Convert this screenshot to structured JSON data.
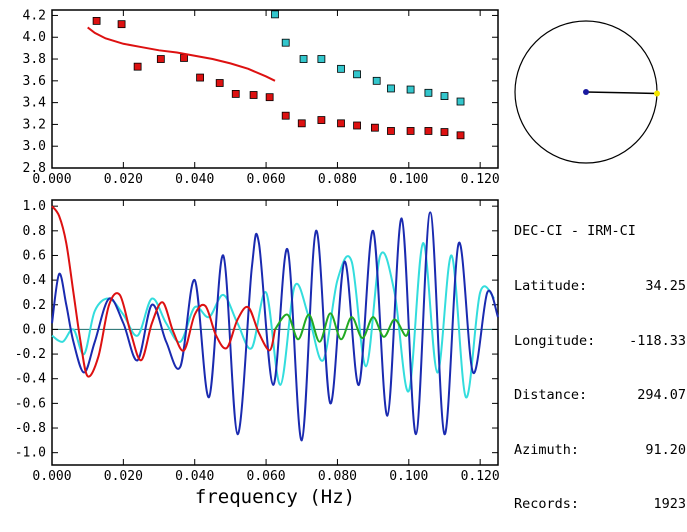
{
  "info_panel": {
    "header": "DEC-CI - IRM-CI",
    "rows": [
      {
        "key": "Latitude:",
        "value": "34.25"
      },
      {
        "key": "Longitude:",
        "value": "-118.33"
      },
      {
        "key": "Distance:",
        "value": "294.07"
      },
      {
        "key": "Azimuth:",
        "value": "91.20"
      },
      {
        "key": "Records:",
        "value": "1923"
      }
    ]
  },
  "azimuth_compass": {
    "azimuth_deg": 91.2,
    "colors": {
      "center": "#1a1aa0",
      "end": "#f5e600",
      "line": "#000000"
    }
  },
  "chart_data": [
    {
      "type": "scatter",
      "xlim": [
        0.0,
        0.125
      ],
      "ylim": [
        2.8,
        4.25
      ],
      "xticks": [
        "0.000",
        "0.020",
        "0.040",
        "0.060",
        "0.080",
        "0.100",
        "0.120"
      ],
      "yticks": [
        "2.8",
        "3.0",
        "3.2",
        "3.4",
        "3.6",
        "3.8",
        "4.0",
        "4.2"
      ],
      "series": [
        {
          "color": "#dd1111",
          "marker": "square",
          "x": [
            0.0125,
            0.0195,
            0.024,
            0.0305,
            0.037,
            0.0415,
            0.047,
            0.0515,
            0.0565,
            0.061,
            0.0655,
            0.07,
            0.0755,
            0.081,
            0.0855,
            0.0905,
            0.095,
            0.1005,
            0.1055,
            0.11,
            0.1145
          ],
          "y": [
            4.15,
            4.12,
            3.73,
            3.8,
            3.81,
            3.63,
            3.58,
            3.48,
            3.47,
            3.45,
            3.28,
            3.21,
            3.24,
            3.21,
            3.19,
            3.17,
            3.14,
            3.14,
            3.14,
            3.13,
            3.1
          ]
        },
        {
          "color": "#33c6cc",
          "marker": "square",
          "x": [
            0.0625,
            0.0655,
            0.0705,
            0.0755,
            0.081,
            0.0855,
            0.091,
            0.095,
            0.1005,
            0.1055,
            0.11,
            0.1145
          ],
          "y": [
            4.21,
            3.95,
            3.8,
            3.8,
            3.71,
            3.66,
            3.6,
            3.53,
            3.52,
            3.49,
            3.46,
            3.41
          ]
        },
        {
          "color": "#dd1111",
          "marker": "line",
          "x": [
            0.01,
            0.012,
            0.015,
            0.02,
            0.025,
            0.03,
            0.035,
            0.04,
            0.045,
            0.05,
            0.055,
            0.06,
            0.0625
          ],
          "y": [
            4.09,
            4.04,
            3.99,
            3.94,
            3.91,
            3.88,
            3.86,
            3.83,
            3.8,
            3.76,
            3.71,
            3.64,
            3.6
          ]
        }
      ]
    },
    {
      "type": "line",
      "xlabel": "frequency (Hz)",
      "xlim": [
        0.0,
        0.125
      ],
      "ylim": [
        -1.1,
        1.05
      ],
      "xticks": [
        "0.000",
        "0.020",
        "0.040",
        "0.060",
        "0.080",
        "0.100",
        "0.120"
      ],
      "yticks": [
        "1.0",
        "0.8",
        "0.6",
        "0.4",
        "0.2",
        "0.0",
        "-0.2",
        "-0.4",
        "-0.6",
        "-0.8",
        "-1.0"
      ],
      "series": [
        {
          "color": "#dd1111",
          "x": [
            0.0,
            0.002,
            0.004,
            0.006,
            0.008,
            0.01,
            0.013,
            0.016,
            0.019,
            0.022,
            0.025,
            0.028,
            0.031,
            0.034,
            0.037,
            0.04,
            0.043,
            0.046,
            0.049,
            0.052,
            0.055,
            0.058,
            0.061,
            0.0625
          ],
          "y": [
            1.0,
            0.92,
            0.7,
            0.3,
            -0.1,
            -0.38,
            -0.22,
            0.2,
            0.28,
            -0.02,
            -0.25,
            0.05,
            0.22,
            -0.02,
            -0.17,
            0.12,
            0.19,
            -0.05,
            -0.15,
            0.08,
            0.18,
            -0.03,
            -0.17,
            0.0
          ]
        },
        {
          "color": "#22aa22",
          "x": [
            0.0625,
            0.066,
            0.069,
            0.072,
            0.075,
            0.078,
            0.081,
            0.084,
            0.087,
            0.09,
            0.093,
            0.096,
            0.099,
            0.1
          ],
          "y": [
            0.0,
            0.12,
            -0.08,
            0.12,
            -0.1,
            0.13,
            -0.08,
            0.1,
            -0.07,
            0.1,
            -0.06,
            0.08,
            -0.05,
            0.0
          ]
        },
        {
          "color": "#33dddd",
          "x": [
            0.0,
            0.003,
            0.006,
            0.009,
            0.012,
            0.016,
            0.02,
            0.024,
            0.028,
            0.032,
            0.036,
            0.04,
            0.044,
            0.048,
            0.052,
            0.056,
            0.06,
            0.064,
            0.068,
            0.072,
            0.076,
            0.08,
            0.084,
            0.088,
            0.092,
            0.096,
            0.1,
            0.104,
            0.108,
            0.112,
            0.116,
            0.12,
            0.124
          ],
          "y": [
            -0.05,
            -0.1,
            0.0,
            -0.2,
            0.15,
            0.25,
            0.12,
            -0.05,
            0.25,
            0.05,
            -0.1,
            0.18,
            0.1,
            0.28,
            0.05,
            -0.15,
            0.3,
            -0.45,
            0.35,
            0.1,
            -0.25,
            0.4,
            0.55,
            -0.3,
            0.6,
            0.3,
            -0.5,
            0.7,
            -0.35,
            0.6,
            -0.55,
            0.3,
            0.25
          ]
        },
        {
          "color": "#1a2ab0",
          "x": [
            0.0,
            0.002,
            0.004,
            0.006,
            0.009,
            0.012,
            0.016,
            0.02,
            0.024,
            0.028,
            0.032,
            0.036,
            0.04,
            0.044,
            0.048,
            0.052,
            0.056,
            0.058,
            0.062,
            0.066,
            0.07,
            0.074,
            0.078,
            0.082,
            0.086,
            0.09,
            0.094,
            0.098,
            0.102,
            0.106,
            0.11,
            0.114,
            0.118,
            0.122,
            0.125
          ],
          "y": [
            0.05,
            0.45,
            0.2,
            -0.1,
            -0.35,
            -0.1,
            0.25,
            0.05,
            -0.25,
            0.2,
            -0.1,
            -0.3,
            0.4,
            -0.55,
            0.6,
            -0.85,
            0.5,
            0.7,
            -0.45,
            0.65,
            -0.9,
            0.8,
            -0.6,
            0.55,
            -0.45,
            0.8,
            -0.7,
            0.9,
            -0.85,
            0.95,
            -0.85,
            0.7,
            -0.35,
            0.3,
            0.1
          ]
        }
      ]
    }
  ]
}
